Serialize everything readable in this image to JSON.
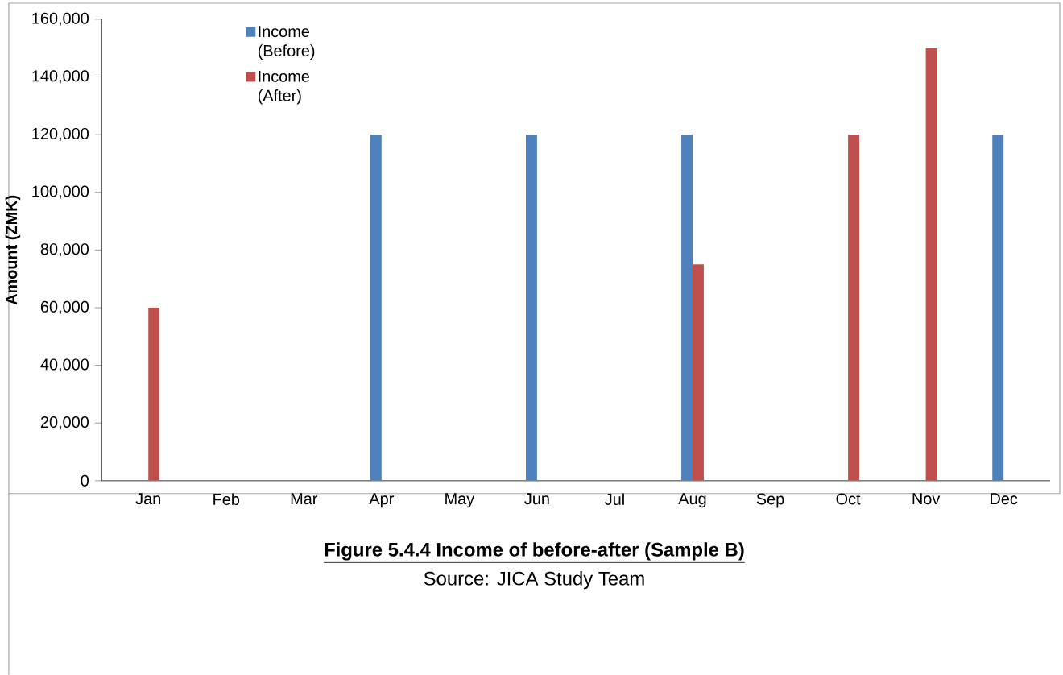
{
  "chart_data": {
    "type": "bar",
    "title": "Figure 5.4.4 Income of before-after (Sample B)",
    "ylabel": "Amount (ZMK)",
    "annotations": [
      "Source: JICA Study Team"
    ],
    "categories": [
      "Jan",
      "Feb",
      "Mar",
      "Apr",
      "May",
      "Jun",
      "Jul",
      "Aug",
      "Sep",
      "Oct",
      "Nov",
      "Dec"
    ],
    "series": [
      {
        "name": "Income (Before)",
        "color": "#4f81bd",
        "values": [
          0,
          0,
          0,
          120000,
          0,
          120000,
          0,
          120000,
          0,
          0,
          0,
          120000
        ]
      },
      {
        "name": "Income (After)",
        "color": "#c0504d",
        "values": [
          60000,
          0,
          0,
          0,
          0,
          0,
          0,
          75000,
          0,
          120000,
          150000,
          0
        ]
      }
    ],
    "ylim": [
      0,
      160000
    ],
    "yticks": [
      {
        "value": 0,
        "label": "0"
      },
      {
        "value": 20000,
        "label": "20,000"
      },
      {
        "value": 40000,
        "label": "40,000"
      },
      {
        "value": 60000,
        "label": "60,000"
      },
      {
        "value": 80000,
        "label": "80,000"
      },
      {
        "value": 100000,
        "label": "100,000"
      },
      {
        "value": 120000,
        "label": "120,000"
      },
      {
        "value": 140000,
        "label": "140,000"
      },
      {
        "value": 160000,
        "label": "160,000"
      }
    ],
    "grid": false,
    "legend": "top left"
  }
}
